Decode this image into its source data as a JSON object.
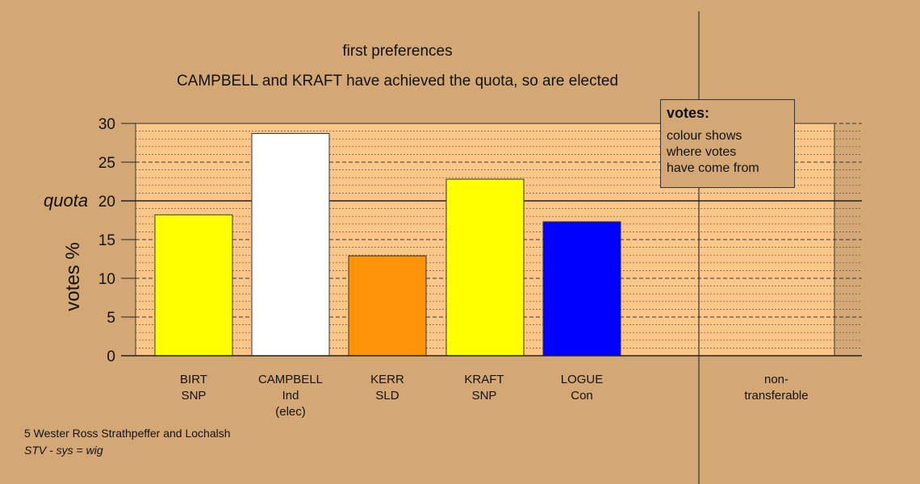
{
  "chart_data": {
    "type": "bar",
    "title": "first preferences",
    "subtitle": "CAMPBELL and KRAFT have achieved the quota, so are elected",
    "ylabel": "votes %",
    "ylim": [
      0,
      30
    ],
    "yticks": [
      "0",
      "5",
      "10",
      "15",
      "20",
      "25",
      "30"
    ],
    "quota_label": "quota",
    "quota": 20,
    "grid": true,
    "bars": [
      {
        "name": "BIRT",
        "party": "SNP",
        "status": "",
        "value": 18.2,
        "color": "#ffff00"
      },
      {
        "name": "CAMPBELL",
        "party": "Ind",
        "status": "(elec)",
        "value": 28.7,
        "color": "#ffffff"
      },
      {
        "name": "KERR",
        "party": "SLD",
        "status": "",
        "value": 12.9,
        "color": "#ff9408"
      },
      {
        "name": "KRAFT",
        "party": "SNP",
        "status": "",
        "value": 22.8,
        "color": "#ffff00"
      },
      {
        "name": "LOGUE",
        "party": "Con",
        "status": "",
        "value": 17.3,
        "color": "#0000ff"
      }
    ],
    "nontransferable": {
      "line1": "non-",
      "line2": "transferable",
      "value": 0
    }
  },
  "legend": {
    "title": "votes:",
    "lines": [
      "colour shows",
      "where votes",
      "have come from"
    ]
  },
  "footer": {
    "line1": "5 Wester Ross Strathpeffer and Lochalsh",
    "line2": "STV - sys = wig"
  },
  "colors": {
    "background": "#d4a874",
    "plot_fill": "#fcc688"
  }
}
